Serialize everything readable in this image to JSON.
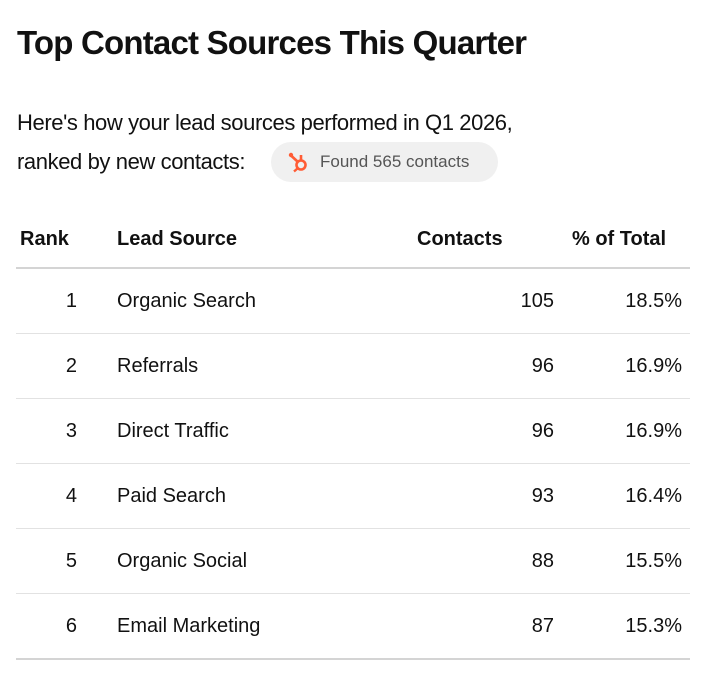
{
  "title": "Top Contact Sources This Quarter",
  "subtitle_line1": "Here's how your lead sources performed in Q1 2026,",
  "subtitle_line2": "ranked by new contacts:",
  "badge": {
    "icon": "hubspot-icon",
    "text": "Found 565 contacts",
    "icon_color": "#ff5c35"
  },
  "table": {
    "headers": [
      "Rank",
      "Lead Source",
      "Contacts",
      "% of Total"
    ],
    "rows": [
      [
        "1",
        "Organic Search",
        "105",
        "18.5%"
      ],
      [
        "2",
        "Referrals",
        "96",
        "16.9%"
      ],
      [
        "3",
        "Direct Traffic",
        "96",
        "16.9%"
      ],
      [
        "4",
        "Paid Search",
        "93",
        "16.4%"
      ],
      [
        "5",
        "Organic Social",
        "88",
        "15.5%"
      ],
      [
        "6",
        "Email Marketing",
        "87",
        "15.3%"
      ]
    ]
  }
}
